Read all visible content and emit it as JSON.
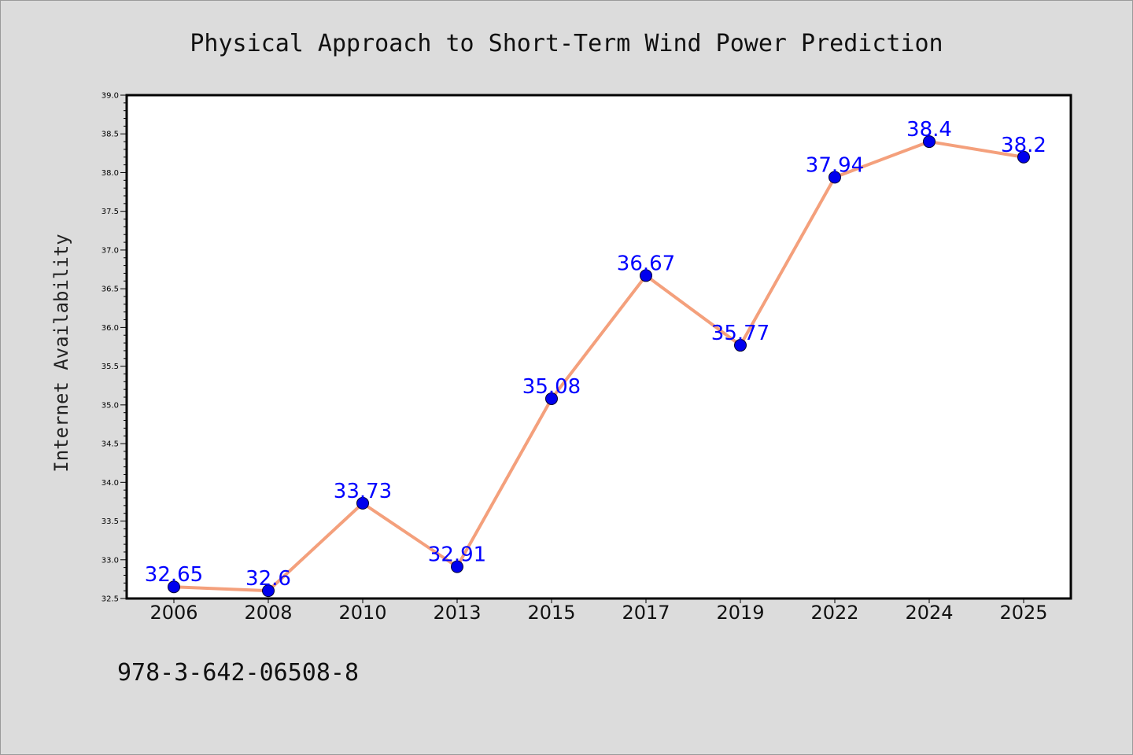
{
  "chart_data": {
    "type": "line",
    "title": "Physical Approach to Short-Term Wind Power Prediction",
    "xlabel": "",
    "ylabel": "Internet Availability",
    "categories": [
      "2006",
      "2008",
      "2010",
      "2013",
      "2015",
      "2017",
      "2019",
      "2022",
      "2024",
      "2025"
    ],
    "values": [
      32.65,
      32.6,
      33.73,
      32.91,
      35.08,
      36.67,
      35.77,
      37.94,
      38.4,
      38.2
    ],
    "data_labels": [
      "32.65",
      "32.6",
      "33.73",
      "32.91",
      "35.08",
      "36.67",
      "35.77",
      "37.94",
      "38.4",
      "38.2"
    ],
    "ylim": [
      32.5,
      39.0
    ],
    "yticks": [
      "32.5",
      "33.0",
      "33.5",
      "34.0",
      "34.5",
      "35.0",
      "35.5",
      "36.0",
      "36.5",
      "37.0",
      "37.5",
      "38.0",
      "38.5",
      "39.0"
    ],
    "grid": false,
    "line_color": "#f4a07c",
    "marker_color": "#0000ee",
    "label_color": "#0000ff",
    "annotation": "978-3-642-06508-8"
  }
}
